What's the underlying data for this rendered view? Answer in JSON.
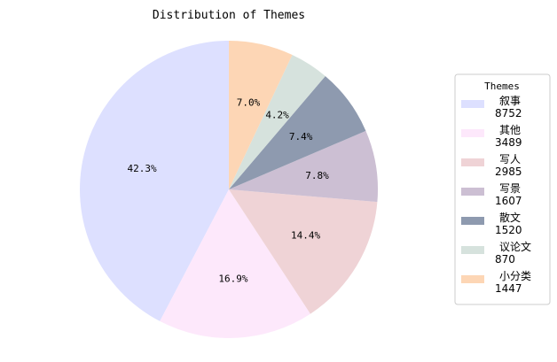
{
  "chart_data": {
    "type": "pie",
    "title": "Distribution of Themes",
    "legend_title": "Themes",
    "legend_position": "right",
    "start_angle_deg": 90,
    "direction": "counterclockwise",
    "slices": [
      {
        "label": "叙事",
        "value": 8752,
        "pct_label": "42.3%",
        "color": "#dde0ff"
      },
      {
        "label": "其他",
        "value": 3489,
        "pct_label": "16.9%",
        "color": "#fde8fb"
      },
      {
        "label": "写人",
        "value": 2985,
        "pct_label": "14.4%",
        "color": "#efd3d6"
      },
      {
        "label": "写景",
        "value": 1607,
        "pct_label": "7.8%",
        "color": "#ccbfd3"
      },
      {
        "label": "散文",
        "value": 1520,
        "pct_label": "7.4%",
        "color": "#8e9aaf"
      },
      {
        "label": "议论文",
        "value": 870,
        "pct_label": "4.2%",
        "color": "#d6e2dd"
      },
      {
        "label": "小分类",
        "value": 1447,
        "pct_label": "7.0%",
        "color": "#fdd6b5"
      }
    ]
  }
}
